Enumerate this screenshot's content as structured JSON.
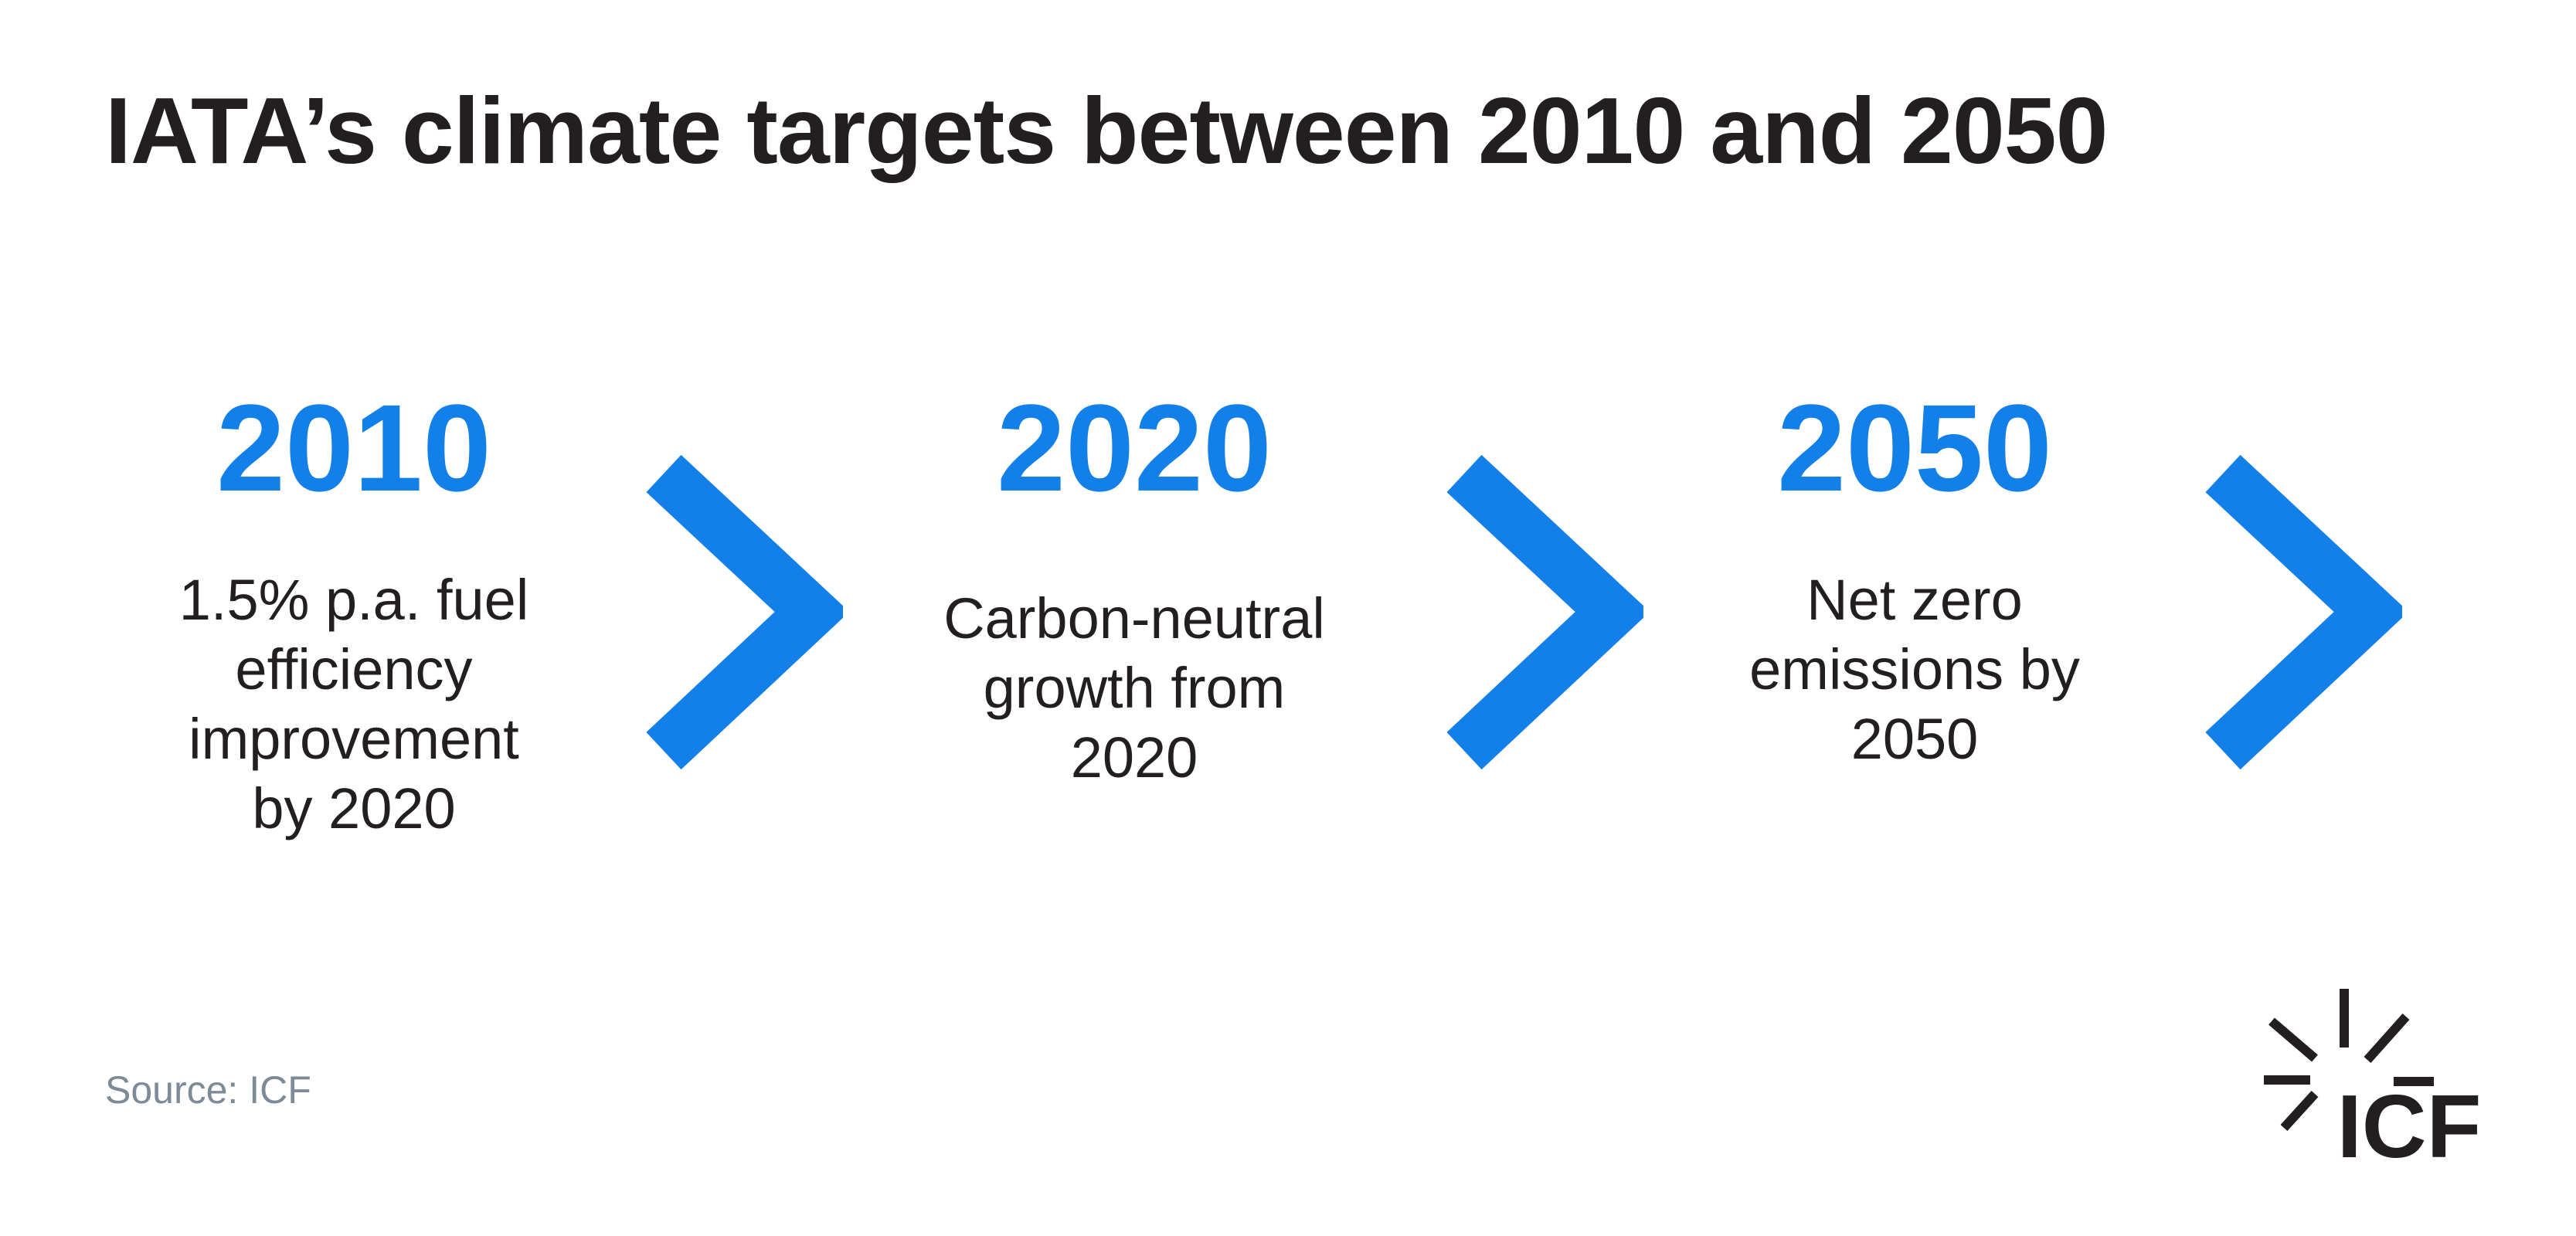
{
  "title": "IATA’s climate targets between 2010 and 2050",
  "accent_color": "#1380ea",
  "text_color": "#231f20",
  "milestones": [
    {
      "year": "2010",
      "lines": [
        "1.5% p.a. fuel",
        "efficiency",
        "improvement",
        "by 2020"
      ]
    },
    {
      "year": "2020",
      "lines": [
        "Carbon-neutral",
        "growth from",
        "2020"
      ]
    },
    {
      "year": "2050",
      "lines": [
        "Net zero",
        "emissions by",
        "2050"
      ]
    }
  ],
  "arrow_icon": "chevron-right-icon",
  "source": "Source:  ICF",
  "logo": {
    "text": "ICF",
    "icon": "icf-burst-logo"
  }
}
